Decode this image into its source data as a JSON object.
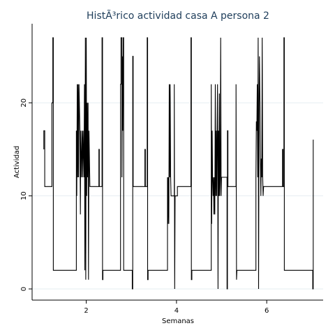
{
  "chart_data": {
    "type": "line",
    "title": "HistÃ³rico actividad casa A persona 2",
    "xlabel": "Semanas",
    "ylabel": "Actividad",
    "xlim": [
      0.8,
      7.25
    ],
    "ylim": [
      -1.2,
      28.5
    ],
    "xticks": [
      2,
      4,
      6
    ],
    "yticks": [
      0,
      10,
      20
    ],
    "grid": true,
    "legend": "none",
    "line_style": "step",
    "series": [
      {
        "color": "#000000",
        "points": [
          [
            1.06,
            17
          ],
          [
            1.06,
            15
          ],
          [
            1.06,
            17
          ],
          [
            1.08,
            17
          ],
          [
            1.08,
            11
          ],
          [
            1.24,
            11
          ],
          [
            1.24,
            20
          ],
          [
            1.26,
            20
          ],
          [
            1.26,
            27
          ],
          [
            1.27,
            27
          ],
          [
            1.27,
            2
          ],
          [
            1.78,
            2
          ],
          [
            1.78,
            17
          ],
          [
            1.79,
            10
          ],
          [
            1.8,
            22
          ],
          [
            1.81,
            12
          ],
          [
            1.82,
            22
          ],
          [
            1.83,
            12
          ],
          [
            1.84,
            22
          ],
          [
            1.86,
            17
          ],
          [
            1.87,
            8
          ],
          [
            1.88,
            17
          ],
          [
            1.89,
            12
          ],
          [
            1.91,
            17
          ],
          [
            1.92,
            12
          ],
          [
            1.93,
            17
          ],
          [
            1.95,
            12
          ],
          [
            1.96,
            22
          ],
          [
            1.97,
            2
          ],
          [
            1.98,
            27
          ],
          [
            1.99,
            1
          ],
          [
            2.0,
            27
          ],
          [
            2.01,
            10
          ],
          [
            2.02,
            20
          ],
          [
            2.03,
            12
          ],
          [
            2.04,
            20
          ],
          [
            2.05,
            1
          ],
          [
            2.06,
            17
          ],
          [
            2.08,
            11
          ],
          [
            2.28,
            11
          ],
          [
            2.28,
            15
          ],
          [
            2.29,
            15
          ],
          [
            2.29,
            11
          ],
          [
            2.35,
            11
          ],
          [
            2.35,
            27
          ],
          [
            2.36,
            27
          ],
          [
            2.36,
            1
          ],
          [
            2.37,
            1
          ],
          [
            2.37,
            2
          ],
          [
            2.76,
            2
          ],
          [
            2.76,
            22
          ],
          [
            2.77,
            22
          ],
          [
            2.77,
            27
          ],
          [
            2.79,
            27
          ],
          [
            2.79,
            12
          ],
          [
            2.8,
            25
          ],
          [
            2.81,
            17
          ],
          [
            2.82,
            27
          ],
          [
            2.83,
            27
          ],
          [
            2.83,
            2
          ],
          [
            3.02,
            2
          ],
          [
            3.02,
            0
          ],
          [
            3.03,
            0
          ],
          [
            3.03,
            25
          ],
          [
            3.04,
            25
          ],
          [
            3.04,
            11
          ],
          [
            3.3,
            11
          ],
          [
            3.3,
            15
          ],
          [
            3.31,
            15
          ],
          [
            3.31,
            11
          ],
          [
            3.35,
            11
          ],
          [
            3.35,
            27
          ],
          [
            3.36,
            27
          ],
          [
            3.36,
            1
          ],
          [
            3.37,
            1
          ],
          [
            3.37,
            2
          ],
          [
            3.8,
            2
          ],
          [
            3.8,
            12
          ],
          [
            3.81,
            7
          ],
          [
            3.82,
            12
          ],
          [
            3.83,
            7
          ],
          [
            3.84,
            22
          ],
          [
            3.85,
            12
          ],
          [
            3.86,
            22
          ],
          [
            3.87,
            12
          ],
          [
            3.88,
            10
          ],
          [
            3.95,
            10
          ],
          [
            3.95,
            22
          ],
          [
            3.96,
            0
          ],
          [
            3.97,
            10
          ],
          [
            4.02,
            10
          ],
          [
            4.02,
            11
          ],
          [
            4.32,
            11
          ],
          [
            4.32,
            27
          ],
          [
            4.33,
            27
          ],
          [
            4.33,
            1
          ],
          [
            4.34,
            1
          ],
          [
            4.34,
            2
          ],
          [
            4.77,
            2
          ],
          [
            4.77,
            22
          ],
          [
            4.78,
            7
          ],
          [
            4.79,
            17
          ],
          [
            4.8,
            12
          ],
          [
            4.81,
            10
          ],
          [
            4.82,
            12
          ],
          [
            4.83,
            8
          ],
          [
            4.84,
            12
          ],
          [
            4.85,
            8
          ],
          [
            4.86,
            22
          ],
          [
            4.87,
            10
          ],
          [
            4.88,
            17
          ],
          [
            4.89,
            10
          ],
          [
            4.9,
            17
          ],
          [
            4.91,
            22
          ],
          [
            4.92,
            0
          ],
          [
            4.93,
            17
          ],
          [
            4.94,
            10
          ],
          [
            4.95,
            21
          ],
          [
            4.96,
            10
          ],
          [
            4.97,
            12
          ],
          [
            4.98,
            27
          ],
          [
            4.99,
            10
          ],
          [
            5.0,
            12
          ],
          [
            5.12,
            12
          ],
          [
            5.12,
            0
          ],
          [
            5.13,
            0
          ],
          [
            5.13,
            17
          ],
          [
            5.14,
            17
          ],
          [
            5.14,
            11
          ],
          [
            5.32,
            11
          ],
          [
            5.32,
            22
          ],
          [
            5.33,
            1
          ],
          [
            5.34,
            2
          ],
          [
            5.76,
            2
          ],
          [
            5.76,
            12
          ],
          [
            5.77,
            18
          ],
          [
            5.78,
            17
          ],
          [
            5.79,
            22
          ],
          [
            5.8,
            12
          ],
          [
            5.81,
            27
          ],
          [
            5.82,
            0
          ],
          [
            5.83,
            20
          ],
          [
            5.84,
            25
          ],
          [
            5.85,
            20
          ],
          [
            5.86,
            14
          ],
          [
            5.87,
            10
          ],
          [
            5.88,
            14
          ],
          [
            5.89,
            12
          ],
          [
            5.9,
            27
          ],
          [
            5.91,
            12
          ],
          [
            5.92,
            10
          ],
          [
            5.93,
            11
          ],
          [
            6.35,
            11
          ],
          [
            6.35,
            15
          ],
          [
            6.36,
            15
          ],
          [
            6.36,
            11
          ],
          [
            6.38,
            11
          ],
          [
            6.38,
            27
          ],
          [
            6.39,
            27
          ],
          [
            6.39,
            2
          ],
          [
            7.02,
            2
          ],
          [
            7.02,
            0
          ],
          [
            7.03,
            0
          ],
          [
            7.03,
            16
          ],
          [
            7.04,
            16
          ]
        ]
      }
    ]
  }
}
